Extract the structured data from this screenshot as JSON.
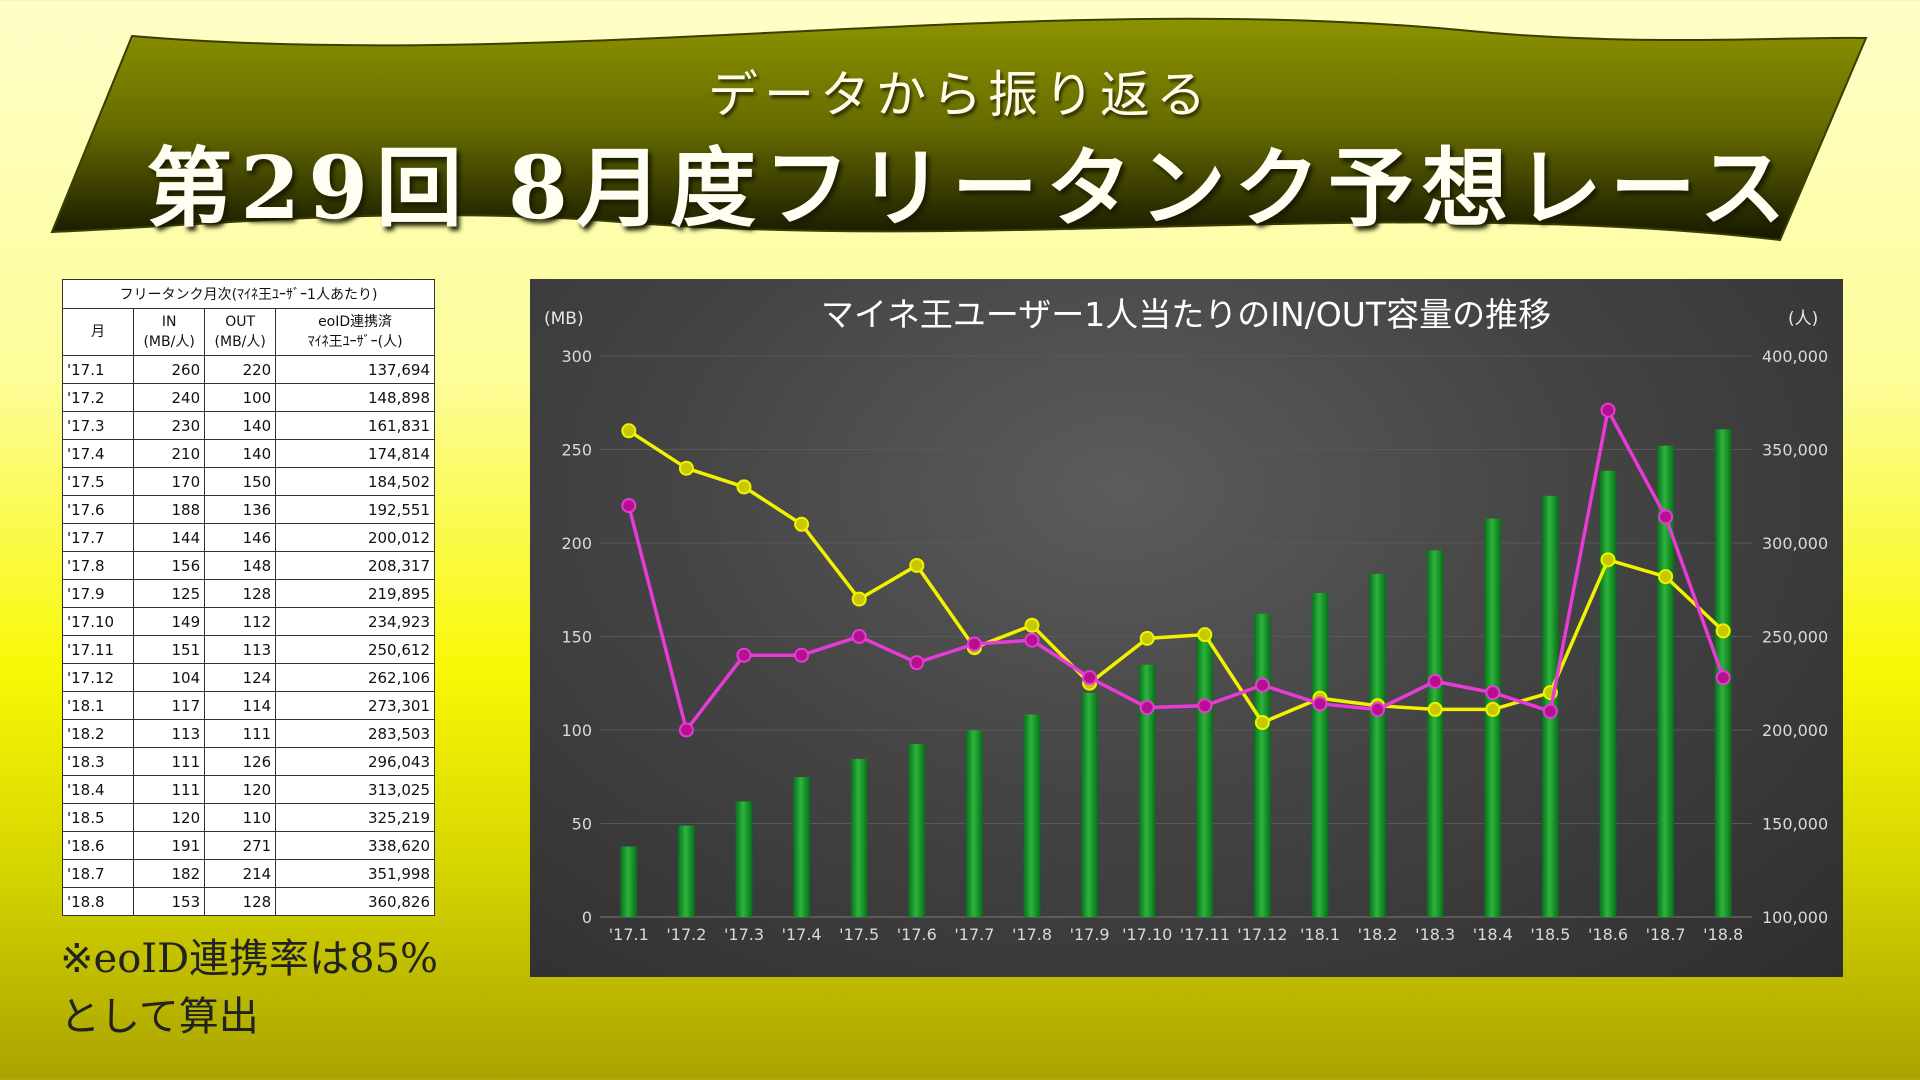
{
  "banner": {
    "subtitle": "データから振り返る",
    "title": "第29回 8月度フリータンク予想レース"
  },
  "table": {
    "caption": "フリータンク月次(ﾏｲﾈ王ﾕｰｻﾞｰ1人あたり)",
    "headers": {
      "month": "月",
      "in": "IN\n(MB/人)",
      "out": "OUT\n(MB/人)",
      "users": "eoID連携済\nﾏｲﾈ王ﾕｰｻﾞｰ(人)"
    },
    "rows": [
      [
        "'17.1",
        "260",
        "220",
        "137,694"
      ],
      [
        "'17.2",
        "240",
        "100",
        "148,898"
      ],
      [
        "'17.3",
        "230",
        "140",
        "161,831"
      ],
      [
        "'17.4",
        "210",
        "140",
        "174,814"
      ],
      [
        "'17.5",
        "170",
        "150",
        "184,502"
      ],
      [
        "'17.6",
        "188",
        "136",
        "192,551"
      ],
      [
        "'17.7",
        "144",
        "146",
        "200,012"
      ],
      [
        "'17.8",
        "156",
        "148",
        "208,317"
      ],
      [
        "'17.9",
        "125",
        "128",
        "219,895"
      ],
      [
        "'17.10",
        "149",
        "112",
        "234,923"
      ],
      [
        "'17.11",
        "151",
        "113",
        "250,612"
      ],
      [
        "'17.12",
        "104",
        "124",
        "262,106"
      ],
      [
        "'18.1",
        "117",
        "114",
        "273,301"
      ],
      [
        "'18.2",
        "113",
        "111",
        "283,503"
      ],
      [
        "'18.3",
        "111",
        "126",
        "296,043"
      ],
      [
        "'18.4",
        "111",
        "120",
        "313,025"
      ],
      [
        "'18.5",
        "120",
        "110",
        "325,219"
      ],
      [
        "'18.6",
        "191",
        "271",
        "338,620"
      ],
      [
        "'18.7",
        "182",
        "214",
        "351,998"
      ],
      [
        "'18.8",
        "153",
        "128",
        "360,826"
      ]
    ]
  },
  "note": {
    "line1": "※eoID連携率は85%",
    "line2": "として算出"
  },
  "colors": {
    "in_line": "#f2f200",
    "out_line": "#e83ad6",
    "bars": "#2bb53c",
    "banner": "#6e7300"
  },
  "chart_data": {
    "type": "bar+line",
    "title": "マイネ王ユーザー1人当たりのIN/OUT容量の推移",
    "ylabel_left": "(MB)",
    "ylabel_right": "(人)",
    "ylim_left": [
      0,
      300
    ],
    "yticks_left": [
      "0",
      "50",
      "100",
      "150",
      "200",
      "250",
      "300"
    ],
    "ylim_right": [
      100000,
      400000
    ],
    "yticks_right": [
      "100,000",
      "150,000",
      "200,000",
      "250,000",
      "300,000",
      "350,000",
      "400,000"
    ],
    "categories": [
      "'17.1",
      "'17.2",
      "'17.3",
      "'17.4",
      "'17.5",
      "'17.6",
      "'17.7",
      "'17.8",
      "'17.9",
      "'17.10",
      "'17.11",
      "'17.12",
      "'18.1",
      "'18.2",
      "'18.3",
      "'18.4",
      "'18.5",
      "'18.6",
      "'18.7",
      "'18.8"
    ],
    "bars": {
      "axis": "right",
      "values": [
        137694,
        148898,
        161831,
        174814,
        184502,
        192551,
        200012,
        208317,
        219895,
        234923,
        250612,
        262106,
        273301,
        283503,
        296043,
        313025,
        325219,
        338620,
        351998,
        360826
      ]
    },
    "series": [
      {
        "key": "in",
        "axis": "left",
        "values": [
          260,
          240,
          230,
          210,
          170,
          188,
          144,
          156,
          125,
          149,
          151,
          104,
          117,
          113,
          111,
          111,
          120,
          191,
          182,
          153
        ]
      },
      {
        "key": "out",
        "axis": "left",
        "values": [
          220,
          100,
          140,
          140,
          150,
          136,
          146,
          148,
          128,
          112,
          113,
          124,
          114,
          111,
          126,
          120,
          110,
          271,
          214,
          128
        ]
      }
    ],
    "grid": true
  }
}
